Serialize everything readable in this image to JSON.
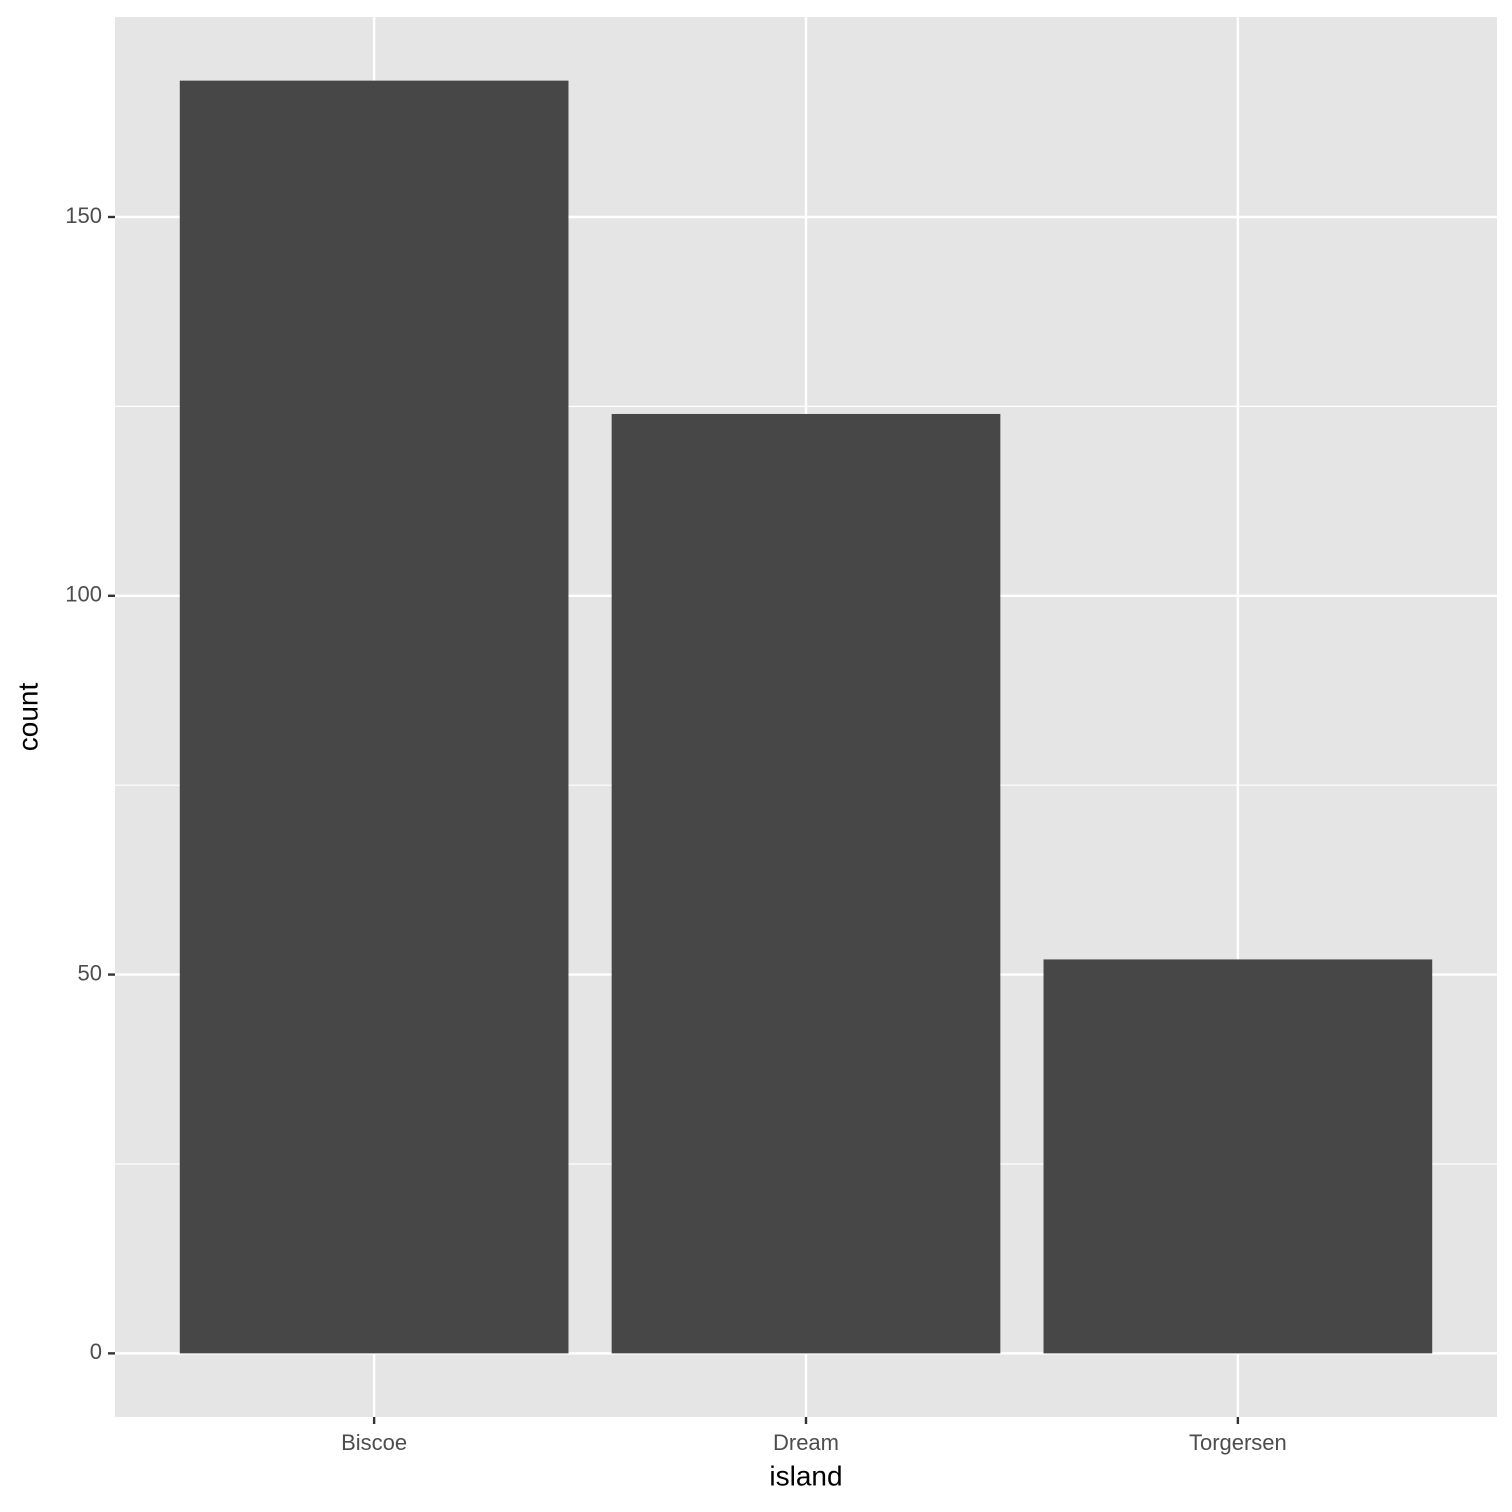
{
  "chart_data": {
    "type": "bar",
    "x_label": "island",
    "y_label": "count",
    "categories": [
      "Biscoe",
      "Dream",
      "Torgersen"
    ],
    "values": [
      168,
      124,
      52
    ],
    "color": "#474747",
    "ylim": [
      -8.4,
      176.4
    ],
    "yticks": [
      0,
      50,
      100,
      150
    ],
    "minor_yticks": [
      25,
      75,
      125
    ],
    "grid": true
  }
}
